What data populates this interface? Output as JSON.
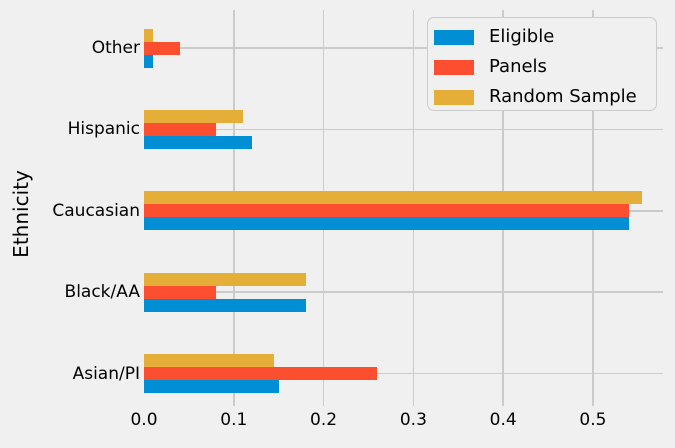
{
  "figure": {
    "background": "#f0f0f0",
    "grid_color": "#cbcbcb",
    "text_color": "#000000"
  },
  "chart_data": {
    "type": "bar",
    "orientation": "horizontal",
    "title": "",
    "xlabel": "",
    "ylabel": "Ethnicity",
    "categories": [
      "Other",
      "Hispanic",
      "Caucasian",
      "Black/AA",
      "Asian/PI"
    ],
    "series": [
      {
        "name": "Eligible",
        "color": "#008fd5",
        "values": [
          0.01,
          0.12,
          0.54,
          0.18,
          0.15
        ]
      },
      {
        "name": "Panels",
        "color": "#fc4f30",
        "values": [
          0.04,
          0.08,
          0.54,
          0.08,
          0.26
        ]
      },
      {
        "name": "Random Sample",
        "color": "#e5ae38",
        "values": [
          0.01,
          0.11,
          0.555,
          0.18,
          0.145
        ]
      }
    ],
    "x_ticks": [
      "0.0",
      "0.1",
      "0.2",
      "0.3",
      "0.4",
      "0.5"
    ],
    "x_tick_values": [
      0,
      0.1,
      0.2,
      0.3,
      0.4,
      0.5
    ],
    "xlim": [
      0,
      0.578
    ],
    "grid": true,
    "legend": {
      "position": "upper right",
      "entries": [
        "Eligible",
        "Panels",
        "Random Sample"
      ]
    }
  }
}
